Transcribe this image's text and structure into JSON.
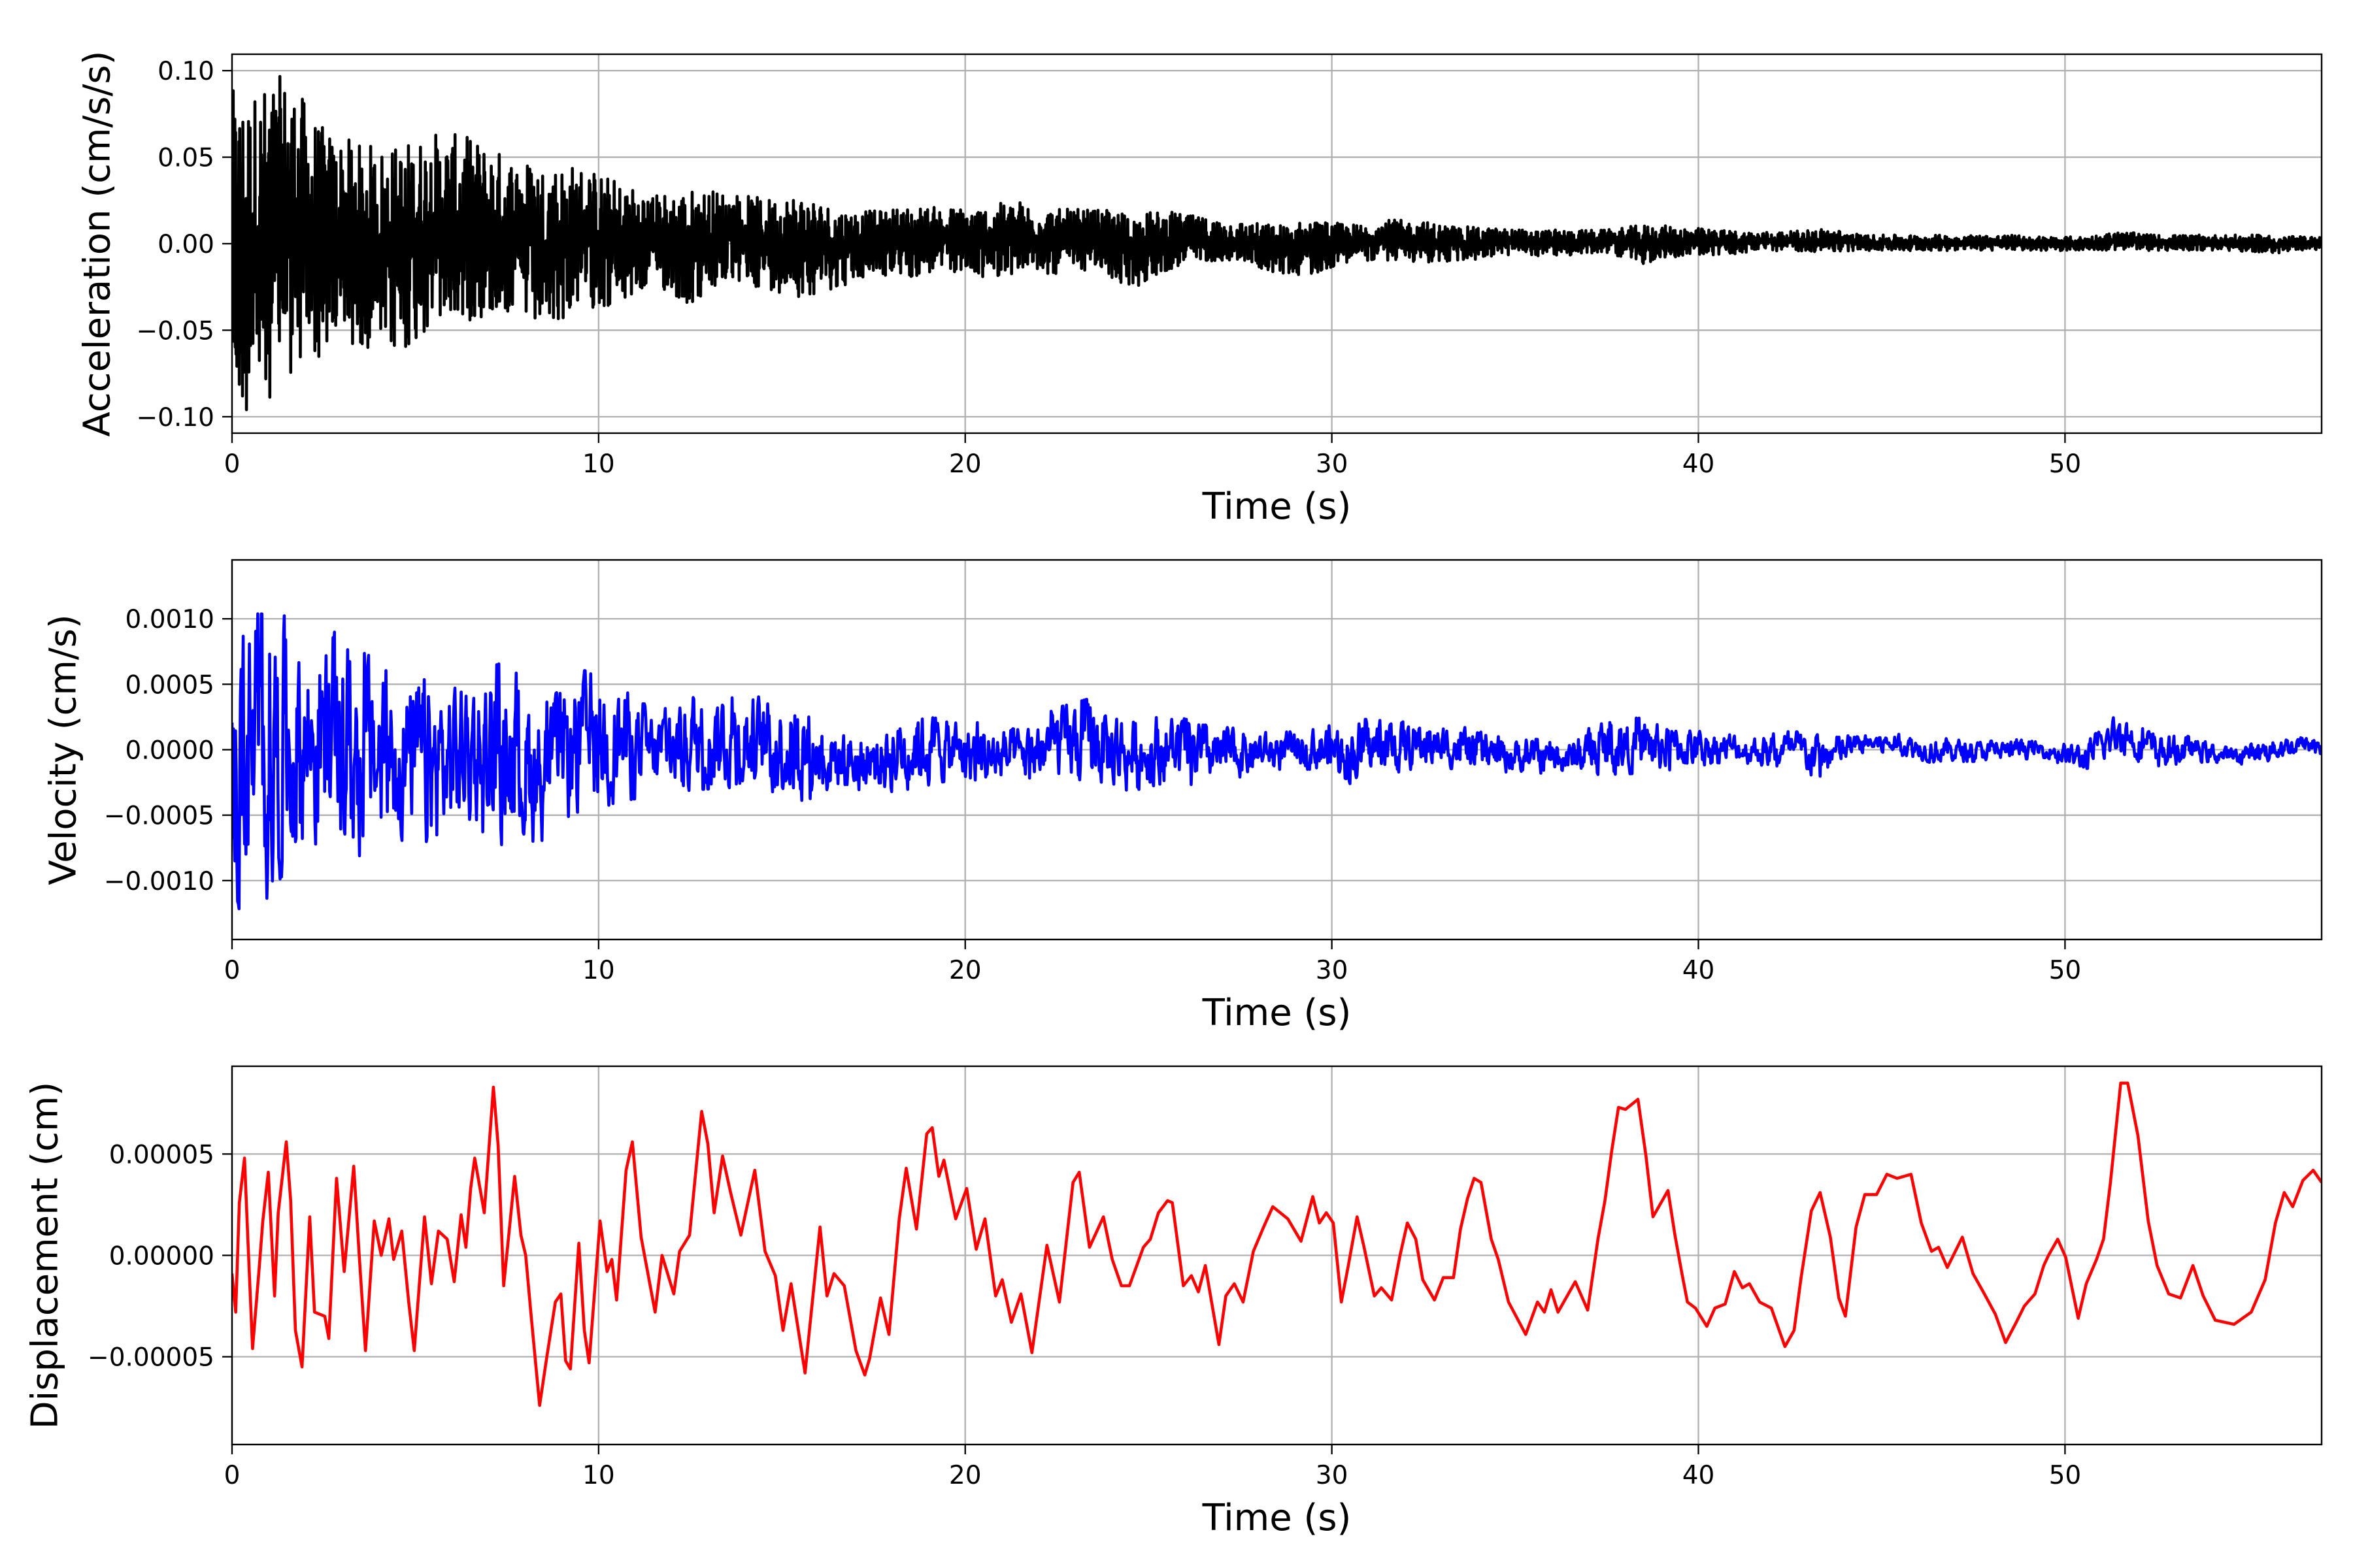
{
  "chart_data": [
    {
      "type": "line",
      "title": "",
      "xlabel": "Time (s)",
      "ylabel": "Acceleration (cm/s/s)",
      "xlim": [
        0,
        57
      ],
      "ylim": [
        -0.1095,
        0.1095
      ],
      "grid": true,
      "color": "#000000",
      "xticks": [
        0,
        10,
        20,
        30,
        40,
        50
      ],
      "xtick_labels": [
        "0",
        "10",
        "20",
        "30",
        "40",
        "50"
      ],
      "yticks": [
        0.1,
        0.05,
        0.0,
        -0.05,
        -0.1
      ],
      "ytick_labels": [
        "0.10",
        "0.05",
        "0.00",
        "−0.05",
        "−0.10"
      ],
      "series": [
        {
          "name": "Acceleration",
          "representation": "per-1s-bin envelope (max/min, cm/s/s)",
          "bin_start_s": [
            0,
            1,
            2,
            3,
            4,
            5,
            6,
            7,
            8,
            9,
            10,
            11,
            12,
            13,
            14,
            15,
            16,
            17,
            18,
            19,
            20,
            21,
            22,
            23,
            24,
            25,
            26,
            27,
            28,
            29,
            30,
            31,
            32,
            33,
            34,
            35,
            36,
            37,
            38,
            39,
            40,
            41,
            42,
            43,
            44,
            45,
            46,
            47,
            48,
            49,
            50,
            51,
            52,
            53,
            54,
            55,
            56
          ],
          "max": [
            0.089,
            0.099,
            0.067,
            0.058,
            0.058,
            0.065,
            0.062,
            0.052,
            0.048,
            0.046,
            0.037,
            0.029,
            0.032,
            0.031,
            0.026,
            0.03,
            0.021,
            0.019,
            0.022,
            0.021,
            0.022,
            0.025,
            0.02,
            0.02,
            0.018,
            0.019,
            0.015,
            0.013,
            0.011,
            0.014,
            0.011,
            0.014,
            0.013,
            0.01,
            0.009,
            0.008,
            0.008,
            0.008,
            0.011,
            0.01,
            0.008,
            0.007,
            0.007,
            0.009,
            0.005,
            0.005,
            0.005,
            0.005,
            0.005,
            0.004,
            0.004,
            0.007,
            0.005,
            0.005,
            0.005,
            0.005,
            0.004
          ],
          "min": [
            -0.1,
            -0.08,
            -0.066,
            -0.059,
            -0.067,
            -0.05,
            -0.045,
            -0.041,
            -0.054,
            -0.036,
            -0.039,
            -0.024,
            -0.037,
            -0.023,
            -0.026,
            -0.031,
            -0.026,
            -0.019,
            -0.02,
            -0.016,
            -0.02,
            -0.017,
            -0.018,
            -0.015,
            -0.027,
            -0.016,
            -0.01,
            -0.01,
            -0.018,
            -0.018,
            -0.01,
            -0.01,
            -0.011,
            -0.011,
            -0.007,
            -0.007,
            -0.007,
            -0.005,
            -0.012,
            -0.007,
            -0.007,
            -0.005,
            -0.004,
            -0.005,
            -0.004,
            -0.004,
            -0.004,
            -0.004,
            -0.004,
            -0.004,
            -0.004,
            -0.004,
            -0.004,
            -0.004,
            -0.004,
            -0.006,
            -0.004
          ]
        }
      ]
    },
    {
      "type": "line",
      "title": "",
      "xlabel": "Time (s)",
      "ylabel": "Velocity (cm/s)",
      "xlim": [
        0,
        57
      ],
      "ylim": [
        -0.00145,
        0.00145
      ],
      "grid": true,
      "color": "#0000ff",
      "xticks": [
        0,
        10,
        20,
        30,
        40,
        50
      ],
      "xtick_labels": [
        "0",
        "10",
        "20",
        "30",
        "40",
        "50"
      ],
      "yticks": [
        0.001,
        0.0005,
        0.0,
        -0.0005,
        -0.001
      ],
      "ytick_labels": [
        "0.0010",
        "0.0005",
        "0.0000",
        "−0.0005",
        "−0.0010"
      ],
      "series": [
        {
          "name": "Velocity",
          "representation": "per-1s-bin envelope (max/min, cm/s)",
          "bin_start_s": [
            0,
            1,
            2,
            3,
            4,
            5,
            6,
            7,
            8,
            9,
            10,
            11,
            12,
            13,
            14,
            15,
            16,
            17,
            18,
            19,
            20,
            21,
            22,
            23,
            24,
            25,
            26,
            27,
            28,
            29,
            30,
            31,
            32,
            33,
            34,
            35,
            36,
            37,
            38,
            39,
            40,
            41,
            42,
            43,
            44,
            45,
            46,
            47,
            48,
            49,
            50,
            51,
            52,
            53,
            54,
            55,
            56
          ],
          "max": [
            0.00104,
            0.00103,
            0.00096,
            0.00075,
            0.00062,
            0.00052,
            0.00057,
            0.00068,
            0.00034,
            0.00061,
            0.00056,
            0.00028,
            0.00044,
            0.00049,
            0.00039,
            0.00043,
            0.00018,
            0.00014,
            0.00037,
            0.00024,
            0.0002,
            0.00015,
            0.00032,
            0.0004,
            0.00024,
            0.00028,
            0.00019,
            0.00016,
            0.00012,
            0.00018,
            0.00024,
            0.00022,
            0.00023,
            0.00018,
            0.0001,
            8e-05,
            7e-05,
            0.00025,
            0.00024,
            0.00018,
            0.00014,
            0.0001,
            0.00014,
            0.00012,
            0.00012,
            0.00012,
            0.0001,
            6e-05,
            8e-05,
            6e-05,
            4e-05,
            0.00029,
            0.00012,
            0.0001,
            1e-05,
            9e-05,
            0.00011
          ],
          "min": [
            -0.00132,
            -0.00091,
            -0.00079,
            -0.00087,
            -0.00067,
            -0.00084,
            -0.00056,
            -0.00076,
            -0.00069,
            -0.00051,
            -0.0004,
            -0.00035,
            -0.00031,
            -0.00029,
            -0.0003,
            -0.00039,
            -0.00033,
            -0.00034,
            -0.0003,
            -0.00024,
            -0.00031,
            -0.00025,
            -0.00025,
            -0.00029,
            -0.00032,
            -0.00025,
            -0.0003,
            -0.00021,
            -0.00015,
            -0.00015,
            -0.00026,
            -0.00019,
            -0.00013,
            -0.00015,
            -0.00017,
            -0.00018,
            -0.00019,
            -0.00019,
            -0.00018,
            -0.00015,
            -0.0001,
            -0.00011,
            -0.00017,
            -0.00021,
            -2e-05,
            -4e-05,
            -0.00011,
            -9e-05,
            -8e-05,
            -6e-05,
            -0.00019,
            -2e-05,
            -0.00016,
            -9e-05,
            -0.00012,
            -9e-05,
            -3e-05
          ]
        }
      ]
    },
    {
      "type": "line",
      "title": "",
      "xlabel": "Time (s)",
      "ylabel": "Displacement (cm)",
      "xlim": [
        0,
        57
      ],
      "ylim": [
        -9.33e-05,
        9.33e-05
      ],
      "grid": true,
      "color": "#ff0000",
      "xticks": [
        0,
        10,
        20,
        30,
        40,
        50
      ],
      "xtick_labels": [
        "0",
        "10",
        "20",
        "30",
        "40",
        "50"
      ],
      "yticks": [
        5e-05,
        0.0,
        -5e-05
      ],
      "ytick_labels": [
        "0.00005",
        "0.00000",
        "−0.00005"
      ],
      "series": [
        {
          "name": "Displacement",
          "y_multiplier": 1e-05,
          "x": [
            0,
            0.1,
            0.2,
            0.34,
            0.43,
            0.56,
            0.75,
            0.84,
            0.99,
            1.16,
            1.26,
            1.48,
            1.6,
            1.73,
            1.91,
            2.12,
            2.25,
            2.53,
            2.64,
            2.85,
            3.06,
            3.32,
            3.47,
            3.64,
            3.88,
            4.07,
            4.28,
            4.41,
            4.63,
            4.82,
            4.97,
            5.25,
            5.44,
            5.63,
            5.87,
            6.06,
            6.25,
            6.38,
            6.51,
            6.62,
            6.88,
            7.13,
            7.26,
            7.41,
            7.71,
            7.88,
            8.01,
            8.16,
            8.39,
            8.58,
            8.82,
            8.97,
            9.1,
            9.23,
            9.46,
            9.61,
            9.74,
            10.04,
            10.23,
            10.36,
            10.49,
            10.75,
            10.92,
            11.16,
            11.54,
            11.73,
            12.05,
            12.21,
            12.48,
            12.81,
            12.98,
            13.15,
            13.38,
            13.6,
            13.88,
            14.26,
            14.54,
            14.82,
            15.03,
            15.25,
            15.63,
            16.04,
            16.23,
            16.42,
            16.7,
            17.02,
            17.26,
            17.39,
            17.69,
            17.92,
            18.2,
            18.39,
            18.67,
            18.95,
            19.1,
            19.28,
            19.42,
            19.74,
            20.04,
            20.3,
            20.54,
            20.83,
            21.01,
            21.26,
            21.52,
            21.82,
            22.23,
            22.57,
            22.94,
            23.11,
            23.39,
            23.77,
            24.01,
            24.26,
            24.48,
            24.86,
            25.05,
            25.27,
            25.52,
            25.65,
            25.95,
            26.17,
            26.36,
            26.55,
            26.92,
            27.11,
            27.34,
            27.58,
            27.86,
            28.14,
            28.39,
            28.8,
            29.16,
            29.48,
            29.66,
            29.85,
            30.04,
            30.26,
            30.45,
            30.69,
            30.88,
            31.16,
            31.35,
            31.63,
            31.86,
            32.06,
            32.29,
            32.48,
            32.8,
            33.04,
            33.32,
            33.51,
            33.7,
            33.88,
            34.07,
            34.35,
            34.54,
            34.82,
            35.29,
            35.61,
            35.8,
            35.98,
            36.17,
            36.64,
            36.98,
            37.26,
            37.45,
            37.64,
            37.82,
            38.01,
            38.35,
            38.57,
            38.76,
            39.17,
            39.36,
            39.55,
            39.7,
            39.92,
            40.23,
            40.45,
            40.73,
            40.98,
            41.2,
            41.39,
            41.67,
            41.99,
            42.36,
            42.61,
            42.8,
            43.08,
            43.32,
            43.6,
            43.83,
            44.01,
            44.3,
            44.54,
            44.86,
            45.14,
            45.42,
            45.8,
            46.08,
            46.36,
            46.55,
            46.79,
            47.2,
            47.49,
            47.77,
            48.1,
            48.38,
            48.67,
            48.89,
            49.18,
            49.42,
            49.55,
            49.8,
            50.02,
            50.36,
            50.58,
            50.86,
            51.05,
            51.24,
            51.52,
            51.71,
            51.99,
            52.27,
            52.51,
            52.83,
            53.15,
            53.49,
            53.77,
            54.1,
            54.61,
            55.08,
            55.46,
            55.74,
            55.98,
            56.21,
            56.49,
            56.77,
            57.0
          ],
          "y": [
            -0.9,
            -2.8,
            2.6,
            4.8,
            0.9,
            -4.6,
            -0.4,
            1.7,
            4.1,
            -2.0,
            2.1,
            5.6,
            2.7,
            -3.7,
            -5.5,
            1.9,
            -2.8,
            -3.0,
            -4.1,
            3.8,
            -0.8,
            4.4,
            0,
            -4.7,
            1.7,
            0,
            1.8,
            -0.2,
            1.2,
            -2.3,
            -4.7,
            1.9,
            -1.4,
            1.2,
            0.8,
            -1.3,
            2.0,
            0.4,
            3.3,
            4.8,
            2.1,
            8.3,
            5.4,
            -1.5,
            3.9,
            1.0,
            0,
            -3.0,
            -7.4,
            -5.1,
            -2.3,
            -1.9,
            -5.2,
            -5.6,
            0.6,
            -3.7,
            -5.3,
            1.7,
            -0.8,
            -0.2,
            -2.2,
            4.2,
            5.6,
            0.9,
            -2.8,
            0,
            -1.9,
            0.2,
            1.0,
            7.1,
            5.5,
            2.1,
            4.9,
            3.1,
            1.0,
            4.2,
            0.2,
            -1.0,
            -3.7,
            -1.4,
            -5.8,
            1.4,
            -2.0,
            -0.9,
            -1.5,
            -4.7,
            -5.9,
            -5.1,
            -2.1,
            -3.9,
            1.8,
            4.3,
            1.3,
            6.0,
            6.3,
            3.9,
            4.7,
            1.8,
            3.3,
            0.3,
            1.8,
            -2.0,
            -1.2,
            -3.3,
            -1.9,
            -4.8,
            0.5,
            -2.3,
            3.6,
            4.1,
            0.4,
            1.9,
            -0.2,
            -1.5,
            -1.5,
            0.4,
            0.8,
            2.1,
            2.7,
            2.6,
            -1.5,
            -1.0,
            -1.8,
            -0.5,
            -4.4,
            -2.0,
            -1.4,
            -2.3,
            0.2,
            1.4,
            2.4,
            1.8,
            0.7,
            2.9,
            1.6,
            2.1,
            1.6,
            -2.3,
            -0.5,
            1.9,
            0.4,
            -2.0,
            -1.6,
            -2.2,
            0,
            1.6,
            0.8,
            -1.2,
            -2.2,
            -1.1,
            -1.1,
            1.3,
            2.8,
            3.8,
            3.6,
            0.8,
            -0.2,
            -2.3,
            -3.9,
            -2.3,
            -2.8,
            -1.7,
            -2.8,
            -1.3,
            -2.7,
            0.8,
            2.7,
            5.2,
            7.3,
            7.2,
            7.7,
            4.9,
            1.9,
            3.2,
            1.0,
            -0.9,
            -2.3,
            -2.6,
            -3.5,
            -2.6,
            -2.4,
            -0.8,
            -1.6,
            -1.4,
            -2.3,
            -2.6,
            -4.5,
            -3.7,
            -1.1,
            2.2,
            3.1,
            0.9,
            -2.1,
            -3.0,
            1.4,
            3.0,
            3.0,
            4.0,
            3.8,
            4.0,
            1.6,
            0.2,
            0.4,
            -0.6,
            0.9,
            -0.9,
            -1.8,
            -2.9,
            -4.3,
            -3.3,
            -2.5,
            -1.9,
            -0.5,
            0,
            0.8,
            -0.1,
            -3.1,
            -1.4,
            -0.2,
            0.8,
            3.6,
            8.5,
            8.5,
            5.9,
            1.7,
            -0.5,
            -1.9,
            -2.1,
            -0.5,
            -2.0,
            -3.2,
            -3.4,
            -2.8,
            -1.2,
            1.6,
            3.1,
            2.4,
            3.7,
            4.2,
            3.6
          ]
        }
      ]
    }
  ]
}
